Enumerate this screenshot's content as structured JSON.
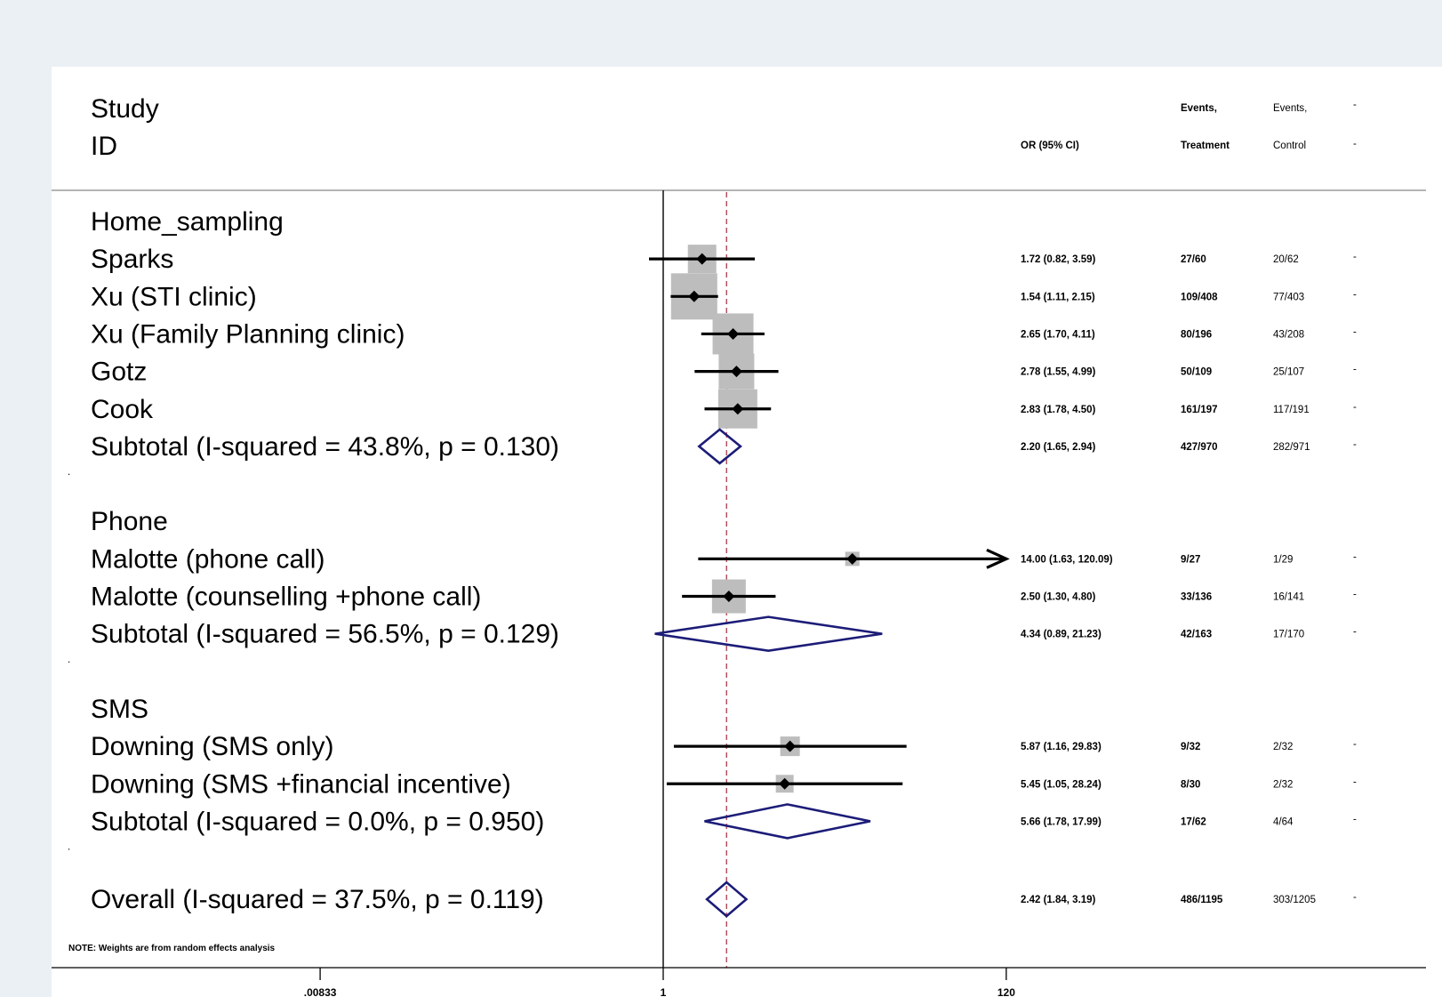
{
  "chart_data": {
    "type": "forest",
    "scale": "log",
    "xticks": [
      {
        "value": 0.00833,
        "label": ".00833"
      },
      {
        "value": 1,
        "label": "1"
      },
      {
        "value": 120,
        "label": "120"
      }
    ],
    "null_line": 1,
    "overall_reference": 2.42,
    "header": {
      "study_line1": "Study",
      "study_line2": "ID",
      "or_label": "OR (95% CI)",
      "events_t_line1": "Events,",
      "events_t_line2": "Treatment",
      "events_c_line1": "Events,",
      "events_c_line2": "Control",
      "weight_line1": "-",
      "weight_line2": "-"
    },
    "note": "NOTE: Weights are from random effects analysis",
    "rows": [
      {
        "kind": "group",
        "label": "Home_sampling"
      },
      {
        "kind": "study",
        "label": "Sparks",
        "or": 1.72,
        "lo": 0.82,
        "hi": 3.59,
        "ci_text": "1.72 (0.82, 3.59)",
        "events_t": "27/60",
        "events_c": "20/62",
        "weight": "-",
        "w": 32
      },
      {
        "kind": "study",
        "label": "Xu (STI clinic)",
        "or": 1.54,
        "lo": 1.11,
        "hi": 2.15,
        "ci_text": "1.54 (1.11, 2.15)",
        "events_t": "109/408",
        "events_c": "77/403",
        "weight": "-",
        "w": 52
      },
      {
        "kind": "study",
        "label": "Xu (Family Planning clinic)",
        "or": 2.65,
        "lo": 1.7,
        "hi": 4.11,
        "ci_text": "2.65 (1.70, 4.11)",
        "events_t": "80/196",
        "events_c": "43/208",
        "weight": "-",
        "w": 46
      },
      {
        "kind": "study",
        "label": "Gotz",
        "or": 2.78,
        "lo": 1.55,
        "hi": 4.99,
        "ci_text": "2.78 (1.55, 4.99)",
        "events_t": "50/109",
        "events_c": "25/107",
        "weight": "-",
        "w": 40
      },
      {
        "kind": "study",
        "label": "Cook",
        "or": 2.83,
        "lo": 1.78,
        "hi": 4.5,
        "ci_text": "2.83 (1.78, 4.50)",
        "events_t": "161/197",
        "events_c": "117/191",
        "weight": "-",
        "w": 44
      },
      {
        "kind": "subtotal",
        "label": "Subtotal  (I-squared = 43.8%, p = 0.130)",
        "or": 2.2,
        "lo": 1.65,
        "hi": 2.94,
        "ci_text": "2.20 (1.65, 2.94)",
        "events_t": "427/970",
        "events_c": "282/971",
        "weight": "-"
      },
      {
        "kind": "spacer",
        "label": "."
      },
      {
        "kind": "group",
        "label": "Phone"
      },
      {
        "kind": "study",
        "label": "Malotte (phone call)",
        "or": 14.0,
        "lo": 1.63,
        "hi": 120.09,
        "ci_text": "14.00 (1.63, 120.09)",
        "events_t": "9/27",
        "events_c": "1/29",
        "weight": "-",
        "w": 16,
        "arrow": true
      },
      {
        "kind": "study",
        "label": "Malotte (counselling +phone call)",
        "or": 2.5,
        "lo": 1.3,
        "hi": 4.8,
        "ci_text": "2.50 (1.30, 4.80)",
        "events_t": "33/136",
        "events_c": "16/141",
        "weight": "-",
        "w": 38
      },
      {
        "kind": "subtotal",
        "label": "Subtotal  (I-squared = 56.5%, p = 0.129)",
        "or": 4.34,
        "lo": 0.89,
        "hi": 21.23,
        "ci_text": "4.34 (0.89, 21.23)",
        "events_t": "42/163",
        "events_c": "17/170",
        "weight": "-"
      },
      {
        "kind": "spacer",
        "label": "."
      },
      {
        "kind": "group",
        "label": "SMS"
      },
      {
        "kind": "study",
        "label": "Downing (SMS only)",
        "or": 5.87,
        "lo": 1.16,
        "hi": 29.83,
        "ci_text": "5.87 (1.16, 29.83)",
        "events_t": "9/32",
        "events_c": "2/32",
        "weight": "-",
        "w": 22
      },
      {
        "kind": "study",
        "label": "Downing (SMS +financial incentive)",
        "or": 5.45,
        "lo": 1.05,
        "hi": 28.24,
        "ci_text": "5.45 (1.05, 28.24)",
        "events_t": "8/30",
        "events_c": "2/32",
        "weight": "-",
        "w": 20
      },
      {
        "kind": "subtotal",
        "label": "Subtotal  (I-squared = 0.0%, p = 0.950)",
        "or": 5.66,
        "lo": 1.78,
        "hi": 17.99,
        "ci_text": "5.66 (1.78, 17.99)",
        "events_t": "17/62",
        "events_c": "4/64",
        "weight": "-"
      },
      {
        "kind": "spacer",
        "label": "."
      },
      {
        "kind": "overall",
        "label": "Overall  (I-squared = 37.5%, p = 0.119)",
        "or": 2.42,
        "lo": 1.84,
        "hi": 3.19,
        "ci_text": "2.42 (1.84, 3.19)",
        "events_t": "486/1195",
        "events_c": "303/1205",
        "weight": "-"
      }
    ]
  }
}
